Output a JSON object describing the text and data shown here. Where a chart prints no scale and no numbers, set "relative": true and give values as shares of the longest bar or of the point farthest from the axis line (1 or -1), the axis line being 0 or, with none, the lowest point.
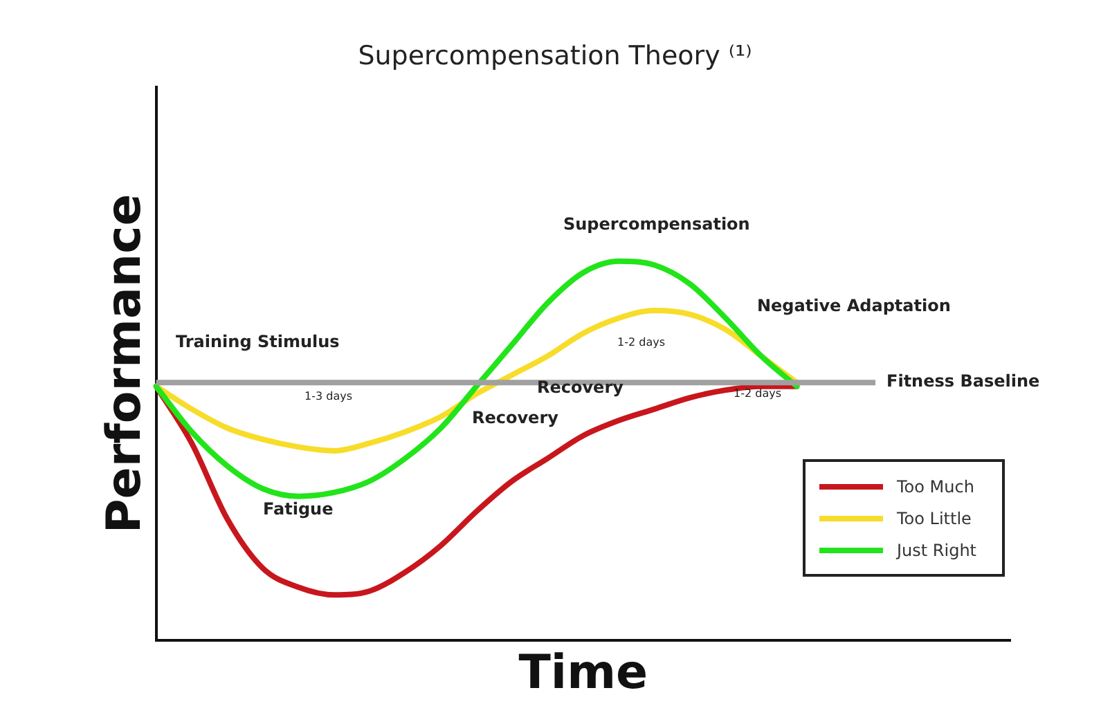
{
  "chart_data": {
    "type": "line",
    "title": "Supercompensation Theory ⁽¹⁾",
    "xlabel": "Time",
    "ylabel": "Performance",
    "relative": true,
    "legend": "bottom right",
    "grid": false,
    "marker": "none",
    "line_style": "solid",
    "categories": [
      null,
      null,
      null,
      null,
      null,
      null,
      null,
      null,
      null,
      null,
      null,
      null,
      null,
      null,
      null,
      null,
      null,
      null,
      null,
      null,
      null,
      null,
      null,
      null,
      null
    ],
    "series": [
      {
        "name": "Too Much",
        "color": "#c8161d",
        "values": [
          0.67,
          0.52,
          0.32,
          0.19,
          0.14,
          0.12,
          0.13,
          0.18,
          0.25,
          0.34,
          0.42,
          0.48,
          0.54,
          0.58,
          0.61,
          0.64,
          0.66,
          0.67,
          0.67,
          null,
          null,
          null,
          null,
          null,
          null
        ]
      },
      {
        "name": "Too Little",
        "color": "#f7dc2a",
        "values": [
          0.67,
          0.61,
          0.56,
          0.53,
          0.51,
          0.5,
          0.52,
          0.55,
          0.59,
          0.65,
          0.7,
          0.75,
          0.81,
          0.85,
          0.87,
          0.86,
          0.82,
          0.75,
          0.68,
          null,
          null,
          null,
          null,
          null,
          null
        ]
      },
      {
        "name": "Just Right",
        "color": "#22e41b",
        "values": [
          0.67,
          0.55,
          0.46,
          0.4,
          0.38,
          0.39,
          0.42,
          0.48,
          0.56,
          0.67,
          0.78,
          0.89,
          0.97,
          1,
          0.99,
          0.94,
          0.85,
          0.75,
          0.67,
          null,
          null,
          null,
          null,
          null,
          null
        ]
      }
    ],
    "ref_lines": [
      {
        "axis": "y",
        "value": 0.68,
        "label": "Fitness Baseline",
        "color": "#a0a0a0"
      }
    ],
    "annotations": [
      "Training Stimulus",
      "1-3 days",
      "Fatigue",
      "Recovery",
      "Recovery",
      "Supercompensation",
      "1-2 days",
      "Negative Adaptation",
      "1-2 days"
    ]
  }
}
